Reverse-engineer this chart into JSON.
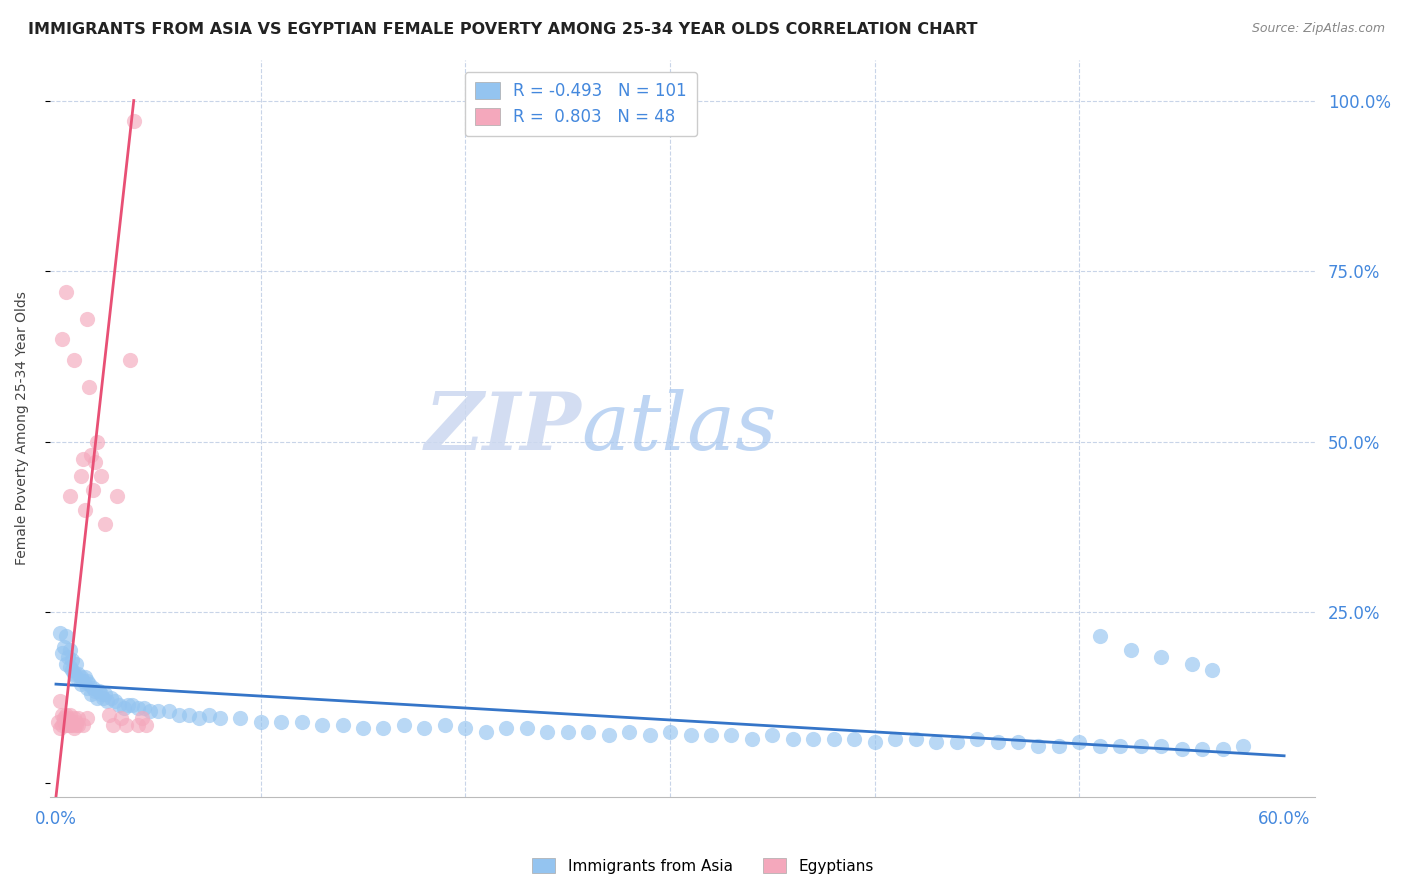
{
  "title": "IMMIGRANTS FROM ASIA VS EGYPTIAN FEMALE POVERTY AMONG 25-34 YEAR OLDS CORRELATION CHART",
  "source": "Source: ZipAtlas.com",
  "ylabel": "Female Poverty Among 25-34 Year Olds",
  "xlim": [
    -0.003,
    0.615
  ],
  "ylim": [
    -0.02,
    1.06
  ],
  "watermark_zip": "ZIP",
  "watermark_atlas": "atlas",
  "legend_r_blue": "-0.493",
  "legend_n_blue": "101",
  "legend_r_pink": "0.803",
  "legend_n_pink": "48",
  "blue_color": "#94c4f0",
  "pink_color": "#f4a8bc",
  "trend_blue_color": "#3575c8",
  "trend_pink_color": "#e85075",
  "background_color": "#ffffff",
  "grid_color": "#c8d4e8",
  "axis_color": "#4488dd",
  "title_color": "#222222",
  "source_color": "#888888",
  "ylabel_color": "#444444",
  "blue_trend_x0": 0.0,
  "blue_trend_y0": 0.145,
  "blue_trend_x1": 0.6,
  "blue_trend_y1": 0.04,
  "pink_trend_x0": 0.0,
  "pink_trend_y0": -0.02,
  "pink_trend_x1": 0.038,
  "pink_trend_y1": 1.0,
  "blue_x": [
    0.002,
    0.003,
    0.004,
    0.005,
    0.005,
    0.006,
    0.007,
    0.007,
    0.008,
    0.008,
    0.009,
    0.01,
    0.01,
    0.011,
    0.012,
    0.012,
    0.013,
    0.014,
    0.015,
    0.015,
    0.016,
    0.017,
    0.018,
    0.019,
    0.02,
    0.021,
    0.022,
    0.023,
    0.024,
    0.025,
    0.027,
    0.029,
    0.031,
    0.033,
    0.035,
    0.037,
    0.04,
    0.043,
    0.046,
    0.05,
    0.055,
    0.06,
    0.065,
    0.07,
    0.075,
    0.08,
    0.09,
    0.1,
    0.11,
    0.12,
    0.13,
    0.14,
    0.15,
    0.16,
    0.17,
    0.18,
    0.19,
    0.2,
    0.21,
    0.22,
    0.23,
    0.24,
    0.25,
    0.26,
    0.27,
    0.28,
    0.29,
    0.3,
    0.31,
    0.32,
    0.33,
    0.34,
    0.35,
    0.36,
    0.37,
    0.38,
    0.39,
    0.4,
    0.41,
    0.42,
    0.43,
    0.44,
    0.45,
    0.46,
    0.47,
    0.48,
    0.49,
    0.5,
    0.51,
    0.52,
    0.53,
    0.54,
    0.55,
    0.56,
    0.57,
    0.58,
    0.51,
    0.525,
    0.54,
    0.555,
    0.565
  ],
  "blue_y": [
    0.22,
    0.19,
    0.2,
    0.175,
    0.215,
    0.185,
    0.17,
    0.195,
    0.165,
    0.18,
    0.16,
    0.155,
    0.175,
    0.16,
    0.155,
    0.145,
    0.15,
    0.155,
    0.14,
    0.15,
    0.145,
    0.13,
    0.14,
    0.135,
    0.125,
    0.135,
    0.13,
    0.125,
    0.13,
    0.12,
    0.125,
    0.12,
    0.115,
    0.11,
    0.115,
    0.115,
    0.11,
    0.11,
    0.105,
    0.105,
    0.105,
    0.1,
    0.1,
    0.095,
    0.1,
    0.095,
    0.095,
    0.09,
    0.09,
    0.09,
    0.085,
    0.085,
    0.08,
    0.08,
    0.085,
    0.08,
    0.085,
    0.08,
    0.075,
    0.08,
    0.08,
    0.075,
    0.075,
    0.075,
    0.07,
    0.075,
    0.07,
    0.075,
    0.07,
    0.07,
    0.07,
    0.065,
    0.07,
    0.065,
    0.065,
    0.065,
    0.065,
    0.06,
    0.065,
    0.065,
    0.06,
    0.06,
    0.065,
    0.06,
    0.06,
    0.055,
    0.055,
    0.06,
    0.055,
    0.055,
    0.055,
    0.055,
    0.05,
    0.05,
    0.05,
    0.055,
    0.215,
    0.195,
    0.185,
    0.175,
    0.165
  ],
  "pink_x": [
    0.001,
    0.002,
    0.002,
    0.003,
    0.003,
    0.004,
    0.004,
    0.005,
    0.005,
    0.006,
    0.006,
    0.007,
    0.007,
    0.008,
    0.008,
    0.009,
    0.009,
    0.01,
    0.01,
    0.011,
    0.012,
    0.013,
    0.014,
    0.015,
    0.016,
    0.017,
    0.018,
    0.019,
    0.02,
    0.022,
    0.024,
    0.026,
    0.028,
    0.03,
    0.032,
    0.034,
    0.036,
    0.038,
    0.04,
    0.042,
    0.044,
    0.003,
    0.005,
    0.007,
    0.009,
    0.011,
    0.013,
    0.015
  ],
  "pink_y": [
    0.09,
    0.12,
    0.08,
    0.1,
    0.085,
    0.09,
    0.095,
    0.1,
    0.085,
    0.095,
    0.085,
    0.1,
    0.085,
    0.09,
    0.085,
    0.095,
    0.08,
    0.09,
    0.085,
    0.085,
    0.45,
    0.475,
    0.4,
    0.68,
    0.58,
    0.48,
    0.43,
    0.47,
    0.5,
    0.45,
    0.38,
    0.1,
    0.085,
    0.42,
    0.095,
    0.085,
    0.62,
    0.97,
    0.085,
    0.095,
    0.085,
    0.65,
    0.72,
    0.42,
    0.62,
    0.095,
    0.085,
    0.095
  ]
}
